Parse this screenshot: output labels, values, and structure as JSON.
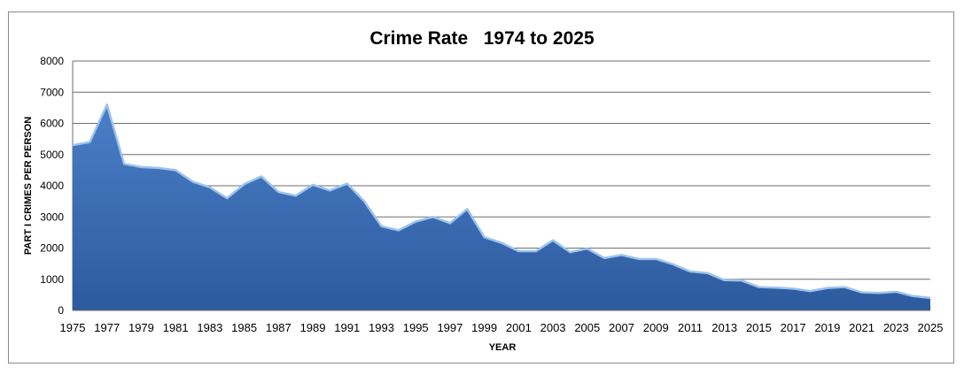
{
  "chart_data": {
    "type": "area",
    "title": "Crime Rate   1974 to 2025",
    "xlabel": "YEAR",
    "ylabel": "PART I CRIMES PER PERSON",
    "ylim": [
      0,
      8000
    ],
    "yticks": [
      0,
      1000,
      2000,
      3000,
      4000,
      5000,
      6000,
      7000,
      8000
    ],
    "xlim": [
      1975,
      2025
    ],
    "xticks": [
      "1975",
      "1977",
      "1979",
      "1981",
      "1983",
      "1985",
      "1987",
      "1989",
      "1991",
      "1993",
      "1995",
      "1997",
      "1999",
      "2001",
      "2003",
      "2005",
      "2007",
      "2009",
      "2011",
      "2013",
      "2015",
      "2017",
      "2019",
      "2021",
      "2023",
      "2025"
    ],
    "grid": true,
    "color": "#3f6fb5",
    "series": [
      {
        "x": [
          1975,
          1976,
          1977,
          1978,
          1979,
          1980,
          1981,
          1982,
          1983,
          1984,
          1985,
          1986,
          1987,
          1988,
          1989,
          1990,
          1991,
          1992,
          1993,
          1994,
          1995,
          1996,
          1997,
          1998,
          1999,
          2000,
          2001,
          2002,
          2003,
          2004,
          2005,
          2006,
          2007,
          2008,
          2009,
          2010,
          2011,
          2012,
          2013,
          2014,
          2015,
          2016,
          2017,
          2018,
          2019,
          2020,
          2021,
          2022,
          2023,
          2024,
          2025
        ],
        "values": [
          5300,
          5400,
          6600,
          4700,
          4600,
          4570,
          4500,
          4130,
          3950,
          3600,
          4050,
          4300,
          3800,
          3680,
          4030,
          3850,
          4070,
          3500,
          2700,
          2570,
          2850,
          3000,
          2800,
          3250,
          2350,
          2170,
          1900,
          1900,
          2250,
          1870,
          1980,
          1680,
          1780,
          1650,
          1650,
          1480,
          1250,
          1200,
          970,
          960,
          750,
          730,
          700,
          620,
          720,
          750,
          580,
          560,
          600,
          460,
          400
        ]
      }
    ]
  }
}
